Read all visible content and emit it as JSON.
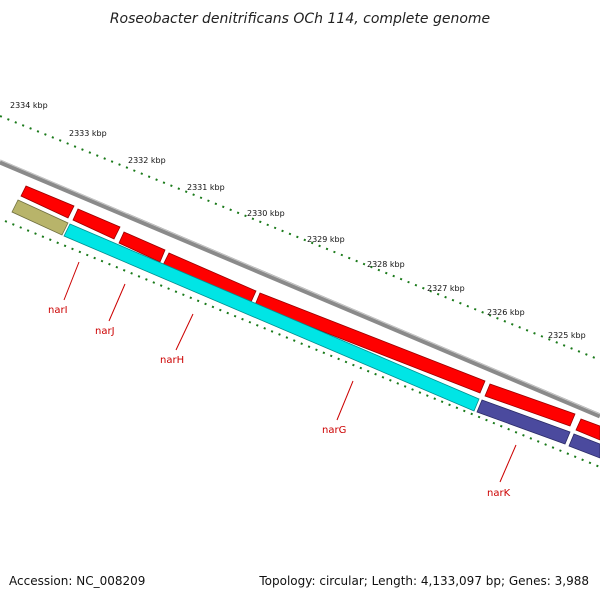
{
  "title": "Roseobacter denitrificans OCh 114, complete genome",
  "footer": {
    "accession": "Accession: NC_008209",
    "topology": "Topology: circular; Length: 4,133,097 bp; Genes: 3,988"
  },
  "scale_ticks": [
    "2334 kbp",
    "2333 kbp",
    "2332 kbp",
    "2331 kbp",
    "2330 kbp",
    "2329 kbp",
    "2328 kbp",
    "2327 kbp",
    "2326 kbp",
    "2325 kbp"
  ],
  "gene_labels": [
    "narI",
    "narJ",
    "narH",
    "narG",
    "narK"
  ],
  "colors": {
    "cds": "#ff0000",
    "gene_cyan": "#00e5e5",
    "gene_khaki": "#b8b46a",
    "gene_purple": "#4b4a9e",
    "backbone": "#8a8a8a",
    "ticks": "#1a7a1a",
    "label": "#cc0000"
  }
}
